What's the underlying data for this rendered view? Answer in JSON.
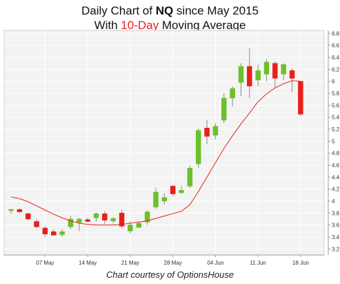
{
  "title": {
    "line1_prefix": "Daily Chart of ",
    "line1_symbol": "NQ",
    "line1_suffix": " since May 2015",
    "line2_prefix": "With ",
    "line2_accent": "10-Day",
    "line2_suffix": " Moving Average"
  },
  "credit": "Chart courtesy of OptionsHouse",
  "colors": {
    "up": "#6cc02a",
    "down": "#e8201a",
    "ma": "#e8201a",
    "plot_bg": "#f3f3f3",
    "grid": "#ffffff",
    "axis": "#999999"
  },
  "chart_data": {
    "type": "candlestick",
    "title": "Daily Chart of NQ since May 2015",
    "subtitle": "With 10-Day Moving Average",
    "ylim": [
      3.1,
      6.85
    ],
    "y_ticks": [
      3.2,
      3.4,
      3.6,
      3.8,
      4,
      4.2,
      4.4,
      4.6,
      4.8,
      5,
      5.2,
      5.4,
      5.6,
      5.8,
      6,
      6.2,
      6.4,
      6.6,
      6.8
    ],
    "y_tick_labels": [
      "3.2",
      "3.4",
      "3.6",
      "3.8",
      "4",
      "4.2",
      "4.4",
      "4.6",
      "4.8",
      "5",
      "5.2",
      "5.4",
      "5.6",
      "5.8",
      "6",
      "6.2",
      "6.4",
      "6.6",
      "6.8"
    ],
    "x_ticks": [
      {
        "label": "07 May",
        "index": 4
      },
      {
        "label": "14 May",
        "index": 9
      },
      {
        "label": "21 May",
        "index": 14
      },
      {
        "label": "28 May",
        "index": 19
      },
      {
        "label": "04 Jun",
        "index": 24
      },
      {
        "label": "11 Jun",
        "index": 29
      },
      {
        "label": "18 Jun",
        "index": 34
      }
    ],
    "grid": true,
    "legend": "none",
    "candles": [
      {
        "open": 3.84,
        "high": 3.87,
        "low": 3.79,
        "close": 3.86
      },
      {
        "open": 3.86,
        "high": 3.88,
        "low": 3.8,
        "close": 3.82
      },
      {
        "open": 3.79,
        "high": 3.81,
        "low": 3.68,
        "close": 3.7
      },
      {
        "open": 3.66,
        "high": 3.7,
        "low": 3.55,
        "close": 3.57
      },
      {
        "open": 3.55,
        "high": 3.58,
        "low": 3.4,
        "close": 3.45
      },
      {
        "open": 3.49,
        "high": 3.53,
        "low": 3.42,
        "close": 3.43
      },
      {
        "open": 3.44,
        "high": 3.53,
        "low": 3.4,
        "close": 3.49
      },
      {
        "open": 3.57,
        "high": 3.75,
        "low": 3.53,
        "close": 3.7
      },
      {
        "open": 3.64,
        "high": 3.72,
        "low": 3.5,
        "close": 3.7
      },
      {
        "open": 3.69,
        "high": 3.72,
        "low": 3.64,
        "close": 3.66
      },
      {
        "open": 3.72,
        "high": 3.81,
        "low": 3.66,
        "close": 3.79
      },
      {
        "open": 3.79,
        "high": 3.83,
        "low": 3.62,
        "close": 3.68
      },
      {
        "open": 3.67,
        "high": 3.73,
        "low": 3.63,
        "close": 3.71
      },
      {
        "open": 3.8,
        "high": 3.86,
        "low": 3.55,
        "close": 3.58
      },
      {
        "open": 3.5,
        "high": 3.66,
        "low": 3.46,
        "close": 3.6
      },
      {
        "open": 3.56,
        "high": 3.65,
        "low": 3.55,
        "close": 3.63
      },
      {
        "open": 3.65,
        "high": 3.85,
        "low": 3.6,
        "close": 3.82
      },
      {
        "open": 3.9,
        "high": 4.22,
        "low": 3.87,
        "close": 4.15
      },
      {
        "open": 4.0,
        "high": 4.13,
        "low": 3.94,
        "close": 4.06
      },
      {
        "open": 4.25,
        "high": 4.27,
        "low": 4.08,
        "close": 4.12
      },
      {
        "open": 4.14,
        "high": 4.25,
        "low": 4.12,
        "close": 4.18
      },
      {
        "open": 4.25,
        "high": 4.6,
        "low": 4.22,
        "close": 4.55
      },
      {
        "open": 4.62,
        "high": 5.21,
        "low": 4.55,
        "close": 5.18
      },
      {
        "open": 5.22,
        "high": 5.35,
        "low": 4.95,
        "close": 5.08
      },
      {
        "open": 5.1,
        "high": 5.3,
        "low": 5.03,
        "close": 5.25
      },
      {
        "open": 5.35,
        "high": 5.8,
        "low": 5.3,
        "close": 5.72
      },
      {
        "open": 5.72,
        "high": 5.92,
        "low": 5.58,
        "close": 5.88
      },
      {
        "open": 5.98,
        "high": 6.3,
        "low": 5.75,
        "close": 6.25
      },
      {
        "open": 6.25,
        "high": 6.55,
        "low": 5.72,
        "close": 5.92
      },
      {
        "open": 6.02,
        "high": 6.28,
        "low": 5.92,
        "close": 6.18
      },
      {
        "open": 6.12,
        "high": 6.37,
        "low": 6.0,
        "close": 6.32
      },
      {
        "open": 6.3,
        "high": 6.33,
        "low": 5.9,
        "close": 6.05
      },
      {
        "open": 6.12,
        "high": 6.3,
        "low": 6.02,
        "close": 6.28
      },
      {
        "open": 6.18,
        "high": 6.22,
        "low": 5.82,
        "close": 6.05
      },
      {
        "open": 6.0,
        "high": 6.0,
        "low": 5.42,
        "close": 5.45
      }
    ],
    "moving_average_10": [
      4.07,
      4.04,
      3.99,
      3.92,
      3.85,
      3.78,
      3.72,
      3.67,
      3.63,
      3.61,
      3.6,
      3.6,
      3.6,
      3.61,
      3.63,
      3.65,
      3.67,
      3.71,
      3.75,
      3.79,
      3.83,
      3.94,
      4.16,
      4.4,
      4.64,
      4.88,
      5.09,
      5.29,
      5.47,
      5.66,
      5.79,
      5.89,
      5.96,
      6.01,
      6.0
    ]
  }
}
